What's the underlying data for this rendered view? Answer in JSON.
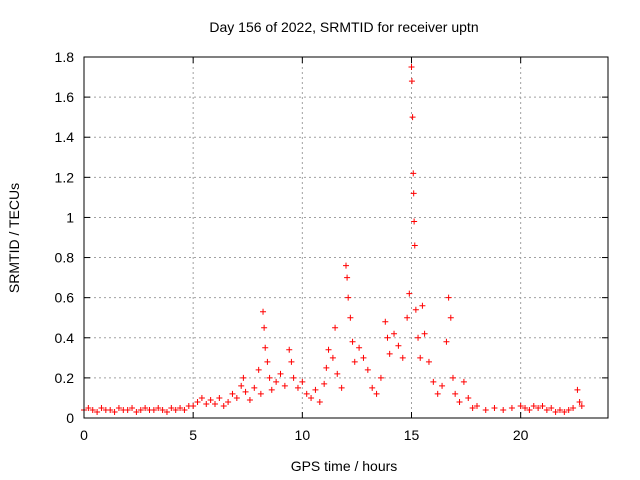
{
  "chart_data": {
    "type": "scatter",
    "title": "Day 156 of 2022, SRMTID for receiver uptn",
    "xlabel": "GPS time / hours",
    "ylabel": "SRMTID / TECUs",
    "xlim": [
      0,
      24
    ],
    "ylim": [
      0,
      1.8
    ],
    "x_ticks": [
      0,
      5,
      10,
      15,
      20
    ],
    "y_ticks": [
      0,
      0.2,
      0.4,
      0.6,
      0.8,
      1,
      1.2,
      1.4,
      1.6,
      1.8
    ],
    "x_tick_labels": [
      "0",
      "5",
      "10",
      "15",
      "20"
    ],
    "y_tick_labels": [
      "0",
      "0.2",
      "0.4",
      "0.6",
      "0.8",
      "1",
      "1.2",
      "1.4",
      "1.6",
      "1.8"
    ],
    "grid": true,
    "marker": "plus",
    "color": "#ff0000",
    "series": [
      {
        "name": "SRMTID",
        "points": [
          [
            0.0,
            0.04
          ],
          [
            0.2,
            0.05
          ],
          [
            0.4,
            0.04
          ],
          [
            0.6,
            0.03
          ],
          [
            0.8,
            0.05
          ],
          [
            1.0,
            0.04
          ],
          [
            1.2,
            0.04
          ],
          [
            1.4,
            0.03
          ],
          [
            1.6,
            0.05
          ],
          [
            1.8,
            0.04
          ],
          [
            2.0,
            0.04
          ],
          [
            2.2,
            0.05
          ],
          [
            2.4,
            0.03
          ],
          [
            2.6,
            0.04
          ],
          [
            2.8,
            0.05
          ],
          [
            3.0,
            0.04
          ],
          [
            3.2,
            0.04
          ],
          [
            3.4,
            0.05
          ],
          [
            3.6,
            0.04
          ],
          [
            3.8,
            0.03
          ],
          [
            4.0,
            0.05
          ],
          [
            4.2,
            0.04
          ],
          [
            4.4,
            0.05
          ],
          [
            4.6,
            0.04
          ],
          [
            4.8,
            0.06
          ],
          [
            5.0,
            0.06
          ],
          [
            5.2,
            0.08
          ],
          [
            5.4,
            0.1
          ],
          [
            5.6,
            0.07
          ],
          [
            5.8,
            0.09
          ],
          [
            6.0,
            0.07
          ],
          [
            6.2,
            0.1
          ],
          [
            6.4,
            0.06
          ],
          [
            6.6,
            0.08
          ],
          [
            6.8,
            0.12
          ],
          [
            7.0,
            0.1
          ],
          [
            7.2,
            0.16
          ],
          [
            7.3,
            0.2
          ],
          [
            7.4,
            0.13
          ],
          [
            7.6,
            0.09
          ],
          [
            7.8,
            0.15
          ],
          [
            8.0,
            0.24
          ],
          [
            8.1,
            0.12
          ],
          [
            8.2,
            0.53
          ],
          [
            8.25,
            0.45
          ],
          [
            8.3,
            0.35
          ],
          [
            8.4,
            0.28
          ],
          [
            8.5,
            0.2
          ],
          [
            8.6,
            0.14
          ],
          [
            8.8,
            0.18
          ],
          [
            9.0,
            0.22
          ],
          [
            9.2,
            0.16
          ],
          [
            9.4,
            0.34
          ],
          [
            9.5,
            0.28
          ],
          [
            9.6,
            0.2
          ],
          [
            9.8,
            0.15
          ],
          [
            10.0,
            0.18
          ],
          [
            10.2,
            0.12
          ],
          [
            10.4,
            0.1
          ],
          [
            10.6,
            0.14
          ],
          [
            10.8,
            0.08
          ],
          [
            11.0,
            0.17
          ],
          [
            11.1,
            0.25
          ],
          [
            11.2,
            0.34
          ],
          [
            11.4,
            0.3
          ],
          [
            11.5,
            0.45
          ],
          [
            11.6,
            0.22
          ],
          [
            11.8,
            0.15
          ],
          [
            12.0,
            0.76
          ],
          [
            12.05,
            0.7
          ],
          [
            12.1,
            0.6
          ],
          [
            12.2,
            0.5
          ],
          [
            12.3,
            0.38
          ],
          [
            12.4,
            0.28
          ],
          [
            12.6,
            0.35
          ],
          [
            12.8,
            0.3
          ],
          [
            13.0,
            0.24
          ],
          [
            13.2,
            0.15
          ],
          [
            13.4,
            0.12
          ],
          [
            13.6,
            0.2
          ],
          [
            13.8,
            0.48
          ],
          [
            13.9,
            0.4
          ],
          [
            14.0,
            0.32
          ],
          [
            14.2,
            0.42
          ],
          [
            14.4,
            0.36
          ],
          [
            14.6,
            0.3
          ],
          [
            14.8,
            0.5
          ],
          [
            14.9,
            0.62
          ],
          [
            15.0,
            1.75
          ],
          [
            15.02,
            1.68
          ],
          [
            15.05,
            1.5
          ],
          [
            15.08,
            1.22
          ],
          [
            15.1,
            1.12
          ],
          [
            15.12,
            0.98
          ],
          [
            15.15,
            0.86
          ],
          [
            15.2,
            0.54
          ],
          [
            15.3,
            0.4
          ],
          [
            15.4,
            0.3
          ],
          [
            15.5,
            0.56
          ],
          [
            15.6,
            0.42
          ],
          [
            15.8,
            0.28
          ],
          [
            16.0,
            0.18
          ],
          [
            16.2,
            0.12
          ],
          [
            16.4,
            0.16
          ],
          [
            16.6,
            0.38
          ],
          [
            16.7,
            0.6
          ],
          [
            16.8,
            0.5
          ],
          [
            16.9,
            0.2
          ],
          [
            17.0,
            0.12
          ],
          [
            17.2,
            0.08
          ],
          [
            17.4,
            0.18
          ],
          [
            17.6,
            0.1
          ],
          [
            17.8,
            0.05
          ],
          [
            18.0,
            0.06
          ],
          [
            18.4,
            0.04
          ],
          [
            18.8,
            0.05
          ],
          [
            19.2,
            0.04
          ],
          [
            19.6,
            0.05
          ],
          [
            20.0,
            0.06
          ],
          [
            20.2,
            0.05
          ],
          [
            20.4,
            0.04
          ],
          [
            20.6,
            0.06
          ],
          [
            20.8,
            0.05
          ],
          [
            21.0,
            0.06
          ],
          [
            21.2,
            0.04
          ],
          [
            21.4,
            0.05
          ],
          [
            21.6,
            0.03
          ],
          [
            21.8,
            0.04
          ],
          [
            22.0,
            0.03
          ],
          [
            22.2,
            0.04
          ],
          [
            22.4,
            0.05
          ],
          [
            22.6,
            0.14
          ],
          [
            22.7,
            0.08
          ],
          [
            22.8,
            0.06
          ]
        ]
      }
    ]
  }
}
